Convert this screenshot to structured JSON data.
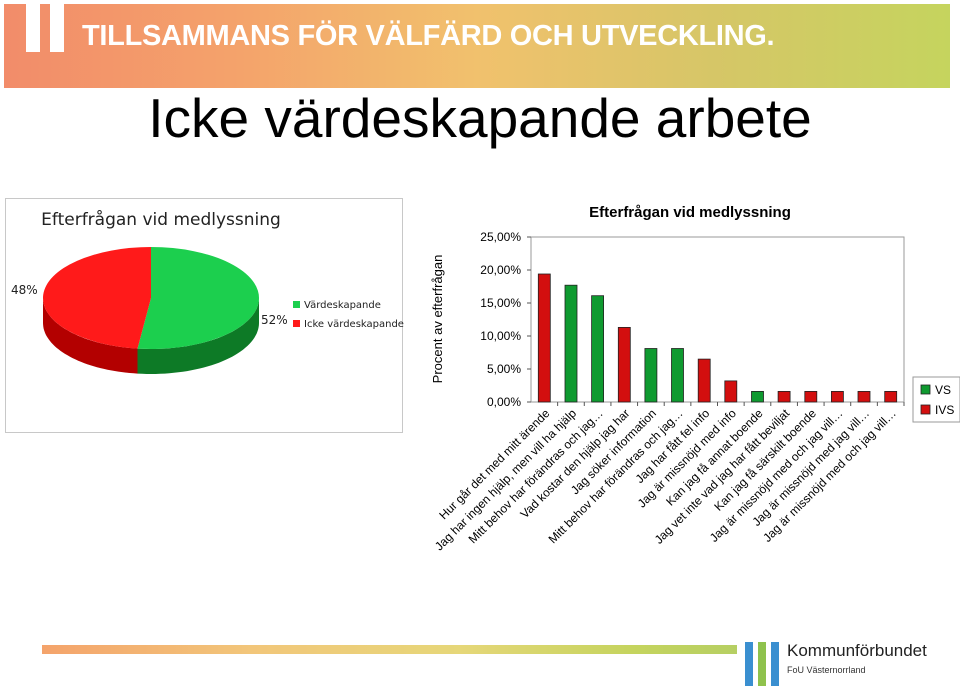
{
  "banner": {
    "text": "TILLSAMMANS FÖR VÄLFÄRD OCH UTVECKLING."
  },
  "slide_title": "Icke värdeskapande arbete",
  "pie": {
    "title": "Efterfrågan vid medlyssning",
    "label_left": "48%",
    "label_right": "52%",
    "legend": [
      {
        "label": "Värdeskapande",
        "color": "#1ccf4e"
      },
      {
        "label": "Icke värdeskapande",
        "color": "#ff1a1a"
      }
    ]
  },
  "colors": {
    "vs": "#0f9a30",
    "ivs": "#d30f0f",
    "pie_green": "#1ccf4e",
    "pie_red": "#ff1a1a"
  },
  "chart_data": [
    {
      "type": "pie",
      "title": "Efterfrågan vid medlyssning",
      "slices": [
        {
          "label": "Värdeskapande",
          "value": 52
        },
        {
          "label": "Icke värdeskapande",
          "value": 48
        }
      ],
      "legend_position": "right"
    },
    {
      "type": "bar",
      "title": "Efterfrågan vid medlyssning",
      "ylabel": "Procent av efterfrågan",
      "ylim": [
        0,
        25
      ],
      "yticks": [
        "0,00%",
        "5,00%",
        "10,00%",
        "15,00%",
        "20,00%",
        "25,00%"
      ],
      "categories": [
        "Hur går det med mitt ärende",
        "Jag har ingen hjälp, men vill ha hjälp",
        "Mitt behov har förändras och jag…",
        "Vad kostar den hjälp jag har",
        "Jag söker information",
        "Mitt behov har förändras och jag…",
        "Jag har fått fel info",
        "Jag är missnöjd med info",
        "Kan jag få annat boende",
        "Jag vet inte vad jag har fått beviljat",
        "Kan jag få särskilt boende",
        "Jag är missnöjd med och jag vill…",
        "Jag är missnöjd med jag vill…",
        "Jag är missnöjd med och jag vill…"
      ],
      "values": [
        19.4,
        17.7,
        16.1,
        11.3,
        8.1,
        8.1,
        6.5,
        3.2,
        1.6,
        1.6,
        1.6,
        1.6,
        1.6,
        1.6
      ],
      "classes": [
        "IVS",
        "VS",
        "VS",
        "IVS",
        "VS",
        "VS",
        "IVS",
        "IVS",
        "VS",
        "IVS",
        "IVS",
        "IVS",
        "IVS",
        "IVS"
      ],
      "legend": [
        "VS",
        "IVS"
      ],
      "legend_position": "right",
      "grid": false
    }
  ],
  "logo": {
    "name": "Kommunförbundet",
    "sub": "FoU Västernorrland"
  }
}
